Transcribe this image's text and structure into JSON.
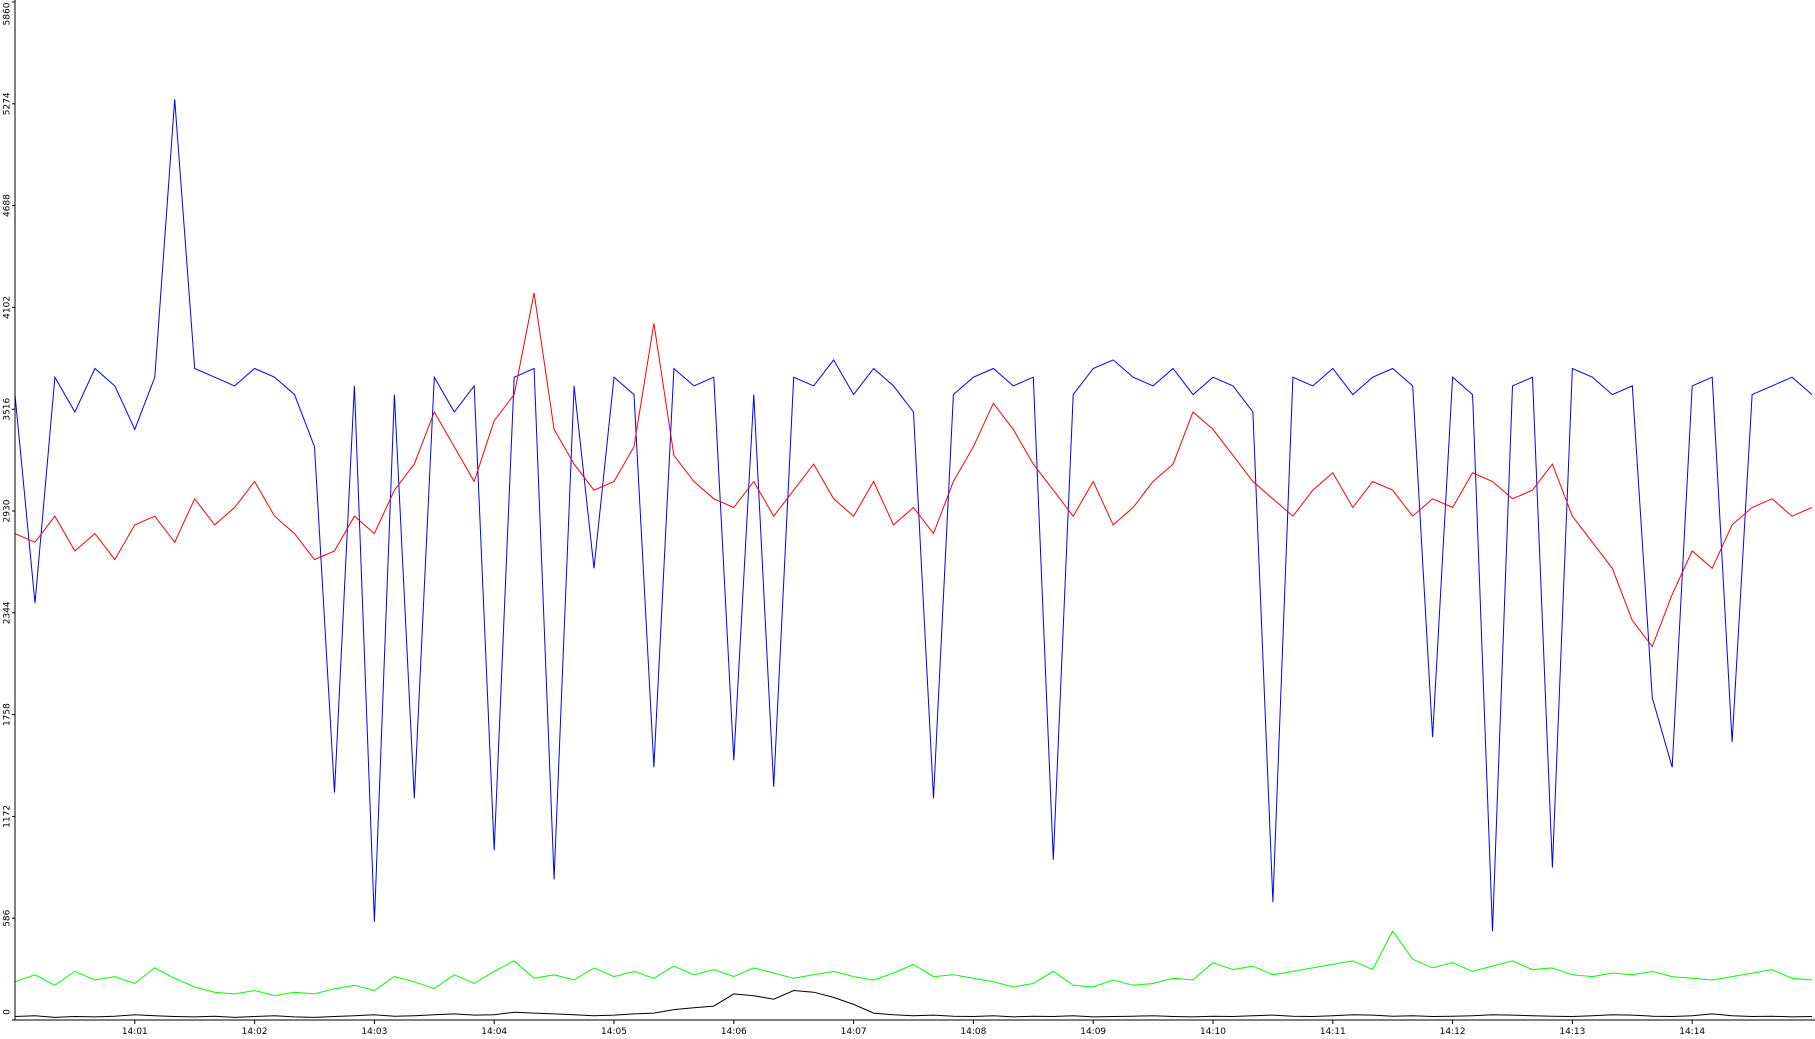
{
  "chart_data": {
    "type": "line",
    "categories": [
      null,
      null,
      null,
      null,
      null,
      null,
      "14:01",
      null,
      null,
      null,
      null,
      null,
      "14:02",
      null,
      null,
      null,
      null,
      null,
      "14:03",
      null,
      null,
      null,
      null,
      null,
      "14:04",
      null,
      null,
      null,
      null,
      null,
      "14:05",
      null,
      null,
      null,
      null,
      null,
      "14:06",
      null,
      null,
      null,
      null,
      null,
      "14:07",
      null,
      null,
      null,
      null,
      null,
      "14:08",
      null,
      null,
      null,
      null,
      null,
      "14:09",
      null,
      null,
      null,
      null,
      null,
      "14:10",
      null,
      null,
      null,
      null,
      null,
      "14:11",
      null,
      null,
      null,
      null,
      null,
      "14:12",
      null,
      null,
      null,
      null,
      null,
      "14:13",
      null,
      null,
      null,
      null,
      null,
      "14:14",
      null,
      null,
      null,
      null,
      null,
      null
    ],
    "series": [
      {
        "color": "#0000ff",
        "values": [
          3600,
          2400,
          3700,
          3500,
          3750,
          3650,
          3400,
          3700,
          5300,
          3750,
          3700,
          3650,
          3750,
          3700,
          3600,
          3300,
          1309,
          3650,
          565,
          3600,
          1276,
          3700,
          3500,
          3650,
          977,
          3700,
          3750,
          810,
          3650,
          2600,
          3700,
          3600,
          1455,
          3750,
          3650,
          3700,
          1495,
          3600,
          1342,
          3700,
          3650,
          3800,
          3600,
          3750,
          3650,
          3500,
          1276,
          3600,
          3700,
          3750,
          3650,
          3700,
          923,
          3600,
          3750,
          3800,
          3700,
          3650,
          3750,
          3600,
          3700,
          3650,
          3500,
          678,
          3700,
          3650,
          3750,
          3600,
          3700,
          3750,
          3650,
          1628,
          3700,
          3600,
          512,
          3650,
          3700,
          877,
          3750,
          3700,
          3600,
          3650,
          1854,
          1455,
          3650,
          3700,
          1599,
          3600,
          3650,
          3700,
          3600
        ]
      },
      {
        "color": "#ff0000",
        "values": [
          2800,
          2750,
          2900,
          2700,
          2800,
          2650,
          2850,
          2900,
          2750,
          3000,
          2850,
          2950,
          3100,
          2900,
          2800,
          2650,
          2700,
          2900,
          2800,
          3050,
          3200,
          3500,
          3300,
          3100,
          3450,
          3600,
          4185,
          3400,
          3200,
          3050,
          3100,
          3300,
          4010,
          3250,
          3100,
          3000,
          2950,
          3100,
          2900,
          3050,
          3200,
          3000,
          2900,
          3100,
          2850,
          2950,
          2800,
          3100,
          3300,
          3550,
          3400,
          3200,
          3050,
          2900,
          3100,
          2850,
          2950,
          3100,
          3200,
          3500,
          3400,
          3250,
          3100,
          3000,
          2900,
          3050,
          3150,
          2950,
          3100,
          3050,
          2900,
          3000,
          2950,
          3150,
          3100,
          3000,
          3050,
          3200,
          2900,
          2750,
          2600,
          2300,
          2150,
          2450,
          2700,
          2600,
          2850,
          2950,
          3000,
          2900,
          2950
        ]
      },
      {
        "color": "#00ff00",
        "values": [
          220,
          260,
          200,
          280,
          230,
          250,
          210,
          300,
          240,
          190,
          160,
          150,
          170,
          140,
          160,
          150,
          180,
          200,
          170,
          250,
          220,
          180,
          260,
          210,
          280,
          340,
          240,
          260,
          230,
          300,
          250,
          280,
          240,
          310,
          260,
          290,
          250,
          300,
          270,
          240,
          260,
          280,
          250,
          230,
          270,
          320,
          250,
          260,
          240,
          220,
          190,
          210,
          280,
          200,
          190,
          230,
          200,
          210,
          240,
          230,
          330,
          290,
          310,
          260,
          280,
          300,
          320,
          340,
          290,
          512,
          350,
          300,
          330,
          280,
          310,
          340,
          290,
          300,
          260,
          250,
          270,
          260,
          280,
          250,
          240,
          230,
          250,
          270,
          290,
          240,
          230
        ]
      },
      {
        "color": "#000000",
        "values": [
          20,
          25,
          15,
          20,
          18,
          22,
          30,
          25,
          20,
          18,
          22,
          15,
          20,
          25,
          18,
          15,
          20,
          25,
          30,
          22,
          25,
          30,
          35,
          28,
          30,
          45,
          40,
          35,
          30,
          25,
          28,
          35,
          40,
          60,
          70,
          80,
          150,
          140,
          120,
          170,
          160,
          130,
          90,
          40,
          30,
          25,
          28,
          22,
          20,
          25,
          18,
          22,
          20,
          25,
          18,
          20,
          22,
          25,
          20,
          18,
          22,
          20,
          25,
          28,
          22,
          20,
          25,
          30,
          28,
          22,
          25,
          20,
          22,
          25,
          30,
          28,
          25,
          22,
          20,
          25,
          30,
          28,
          22,
          20,
          25,
          35,
          25,
          20,
          22,
          18,
          20
        ]
      }
    ],
    "ylim": [
      0,
      5860
    ],
    "yticks": [
      0,
      586,
      1172,
      1758,
      2344,
      2930,
      3516,
      4102,
      4688,
      5274,
      5860
    ]
  }
}
